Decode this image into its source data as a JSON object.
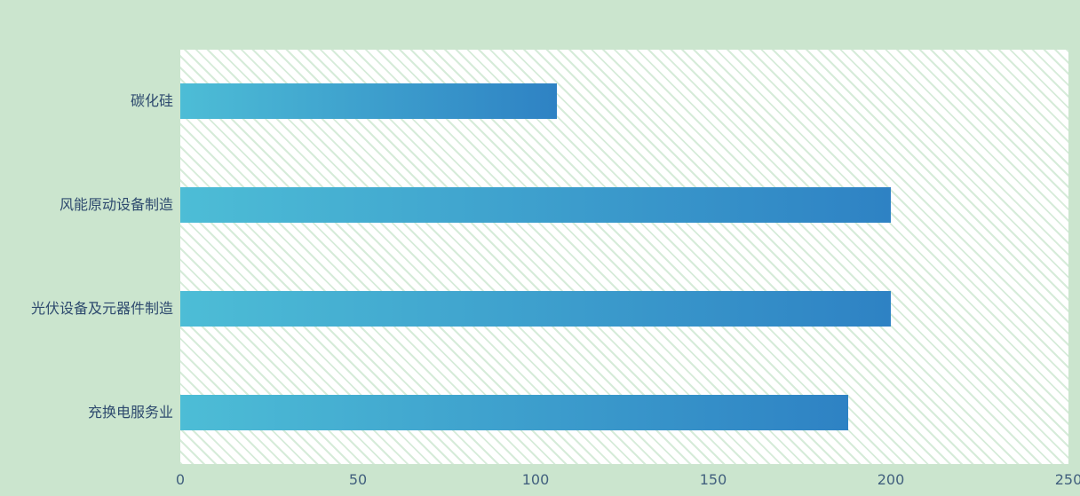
{
  "chart_data": {
    "type": "bar",
    "orientation": "horizontal",
    "title": "",
    "xlabel": "",
    "ylabel": "",
    "categories": [
      "碳化硅",
      "风能原动设备制造",
      "光伏设备及元器件制造",
      "充换电服务业"
    ],
    "values": [
      106,
      200,
      200,
      188
    ],
    "xlim": [
      0,
      250
    ],
    "xticks": [
      0,
      50,
      100,
      150,
      200,
      250
    ],
    "grid": false,
    "legend": false,
    "colors": {
      "page_background": "#cbe5ce",
      "plot_background": "#ffffff",
      "hatch_line": "#d6ebd9",
      "bar_gradient_start": "#4dbdd6",
      "bar_gradient_end": "#2e82c4",
      "category_label": "#2e4a6e",
      "tick_label": "#42607e"
    }
  }
}
